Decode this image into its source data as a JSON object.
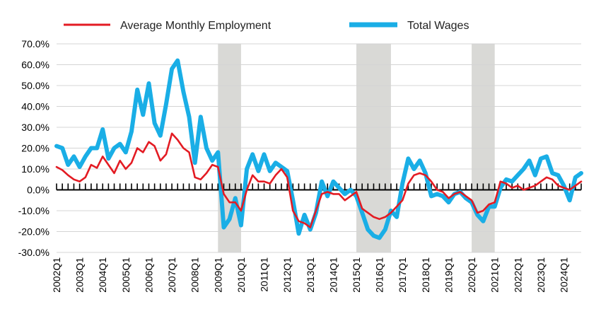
{
  "chart_data": {
    "type": "line",
    "legend": [
      "Average Monthly Employment",
      "Total Wages"
    ],
    "legend_placement": "top",
    "colors": {
      "employment": "#e31b23",
      "wages": "#1aaee6",
      "recession": "#d9d9d6",
      "zero_line": "#000000"
    },
    "ylim": [
      -0.3,
      0.7
    ],
    "y_ticks": [
      "70.0%",
      "60.0%",
      "50.0%",
      "40.0%",
      "30.0%",
      "20.0%",
      "10.0%",
      "0.0%",
      "-10.0%",
      "-20.0%",
      "-30.0%"
    ],
    "y_tick_values": [
      0.7,
      0.6,
      0.5,
      0.4,
      0.3,
      0.2,
      0.1,
      0.0,
      -0.1,
      -0.2,
      -0.3
    ],
    "x_tick_labels": [
      "2002Q1",
      "2003Q1",
      "2004Q1",
      "2005Q1",
      "2006Q1",
      "2007Q1",
      "2008Q1",
      "2009Q1",
      "2010Q1",
      "2011Q1",
      "2012Q1",
      "2013Q1",
      "2014Q1",
      "2015Q1",
      "2016Q1",
      "2017Q1",
      "2018Q1",
      "2019Q1",
      "2020Q1",
      "2021Q1",
      "2022Q1",
      "2023Q1",
      "2024Q1"
    ],
    "x_range": [
      "2002Q1",
      "2024Q4"
    ],
    "grid": "horizontal",
    "shaded_periods": [
      [
        "2009Q1",
        "2010Q1"
      ],
      [
        "2015Q1",
        "2016Q3"
      ],
      [
        "2020Q1",
        "2021Q1"
      ]
    ],
    "series": [
      {
        "name": "Average Monthly Employment",
        "values": [
          0.11,
          0.095,
          0.07,
          0.05,
          0.04,
          0.06,
          0.12,
          0.105,
          0.16,
          0.12,
          0.08,
          0.14,
          0.1,
          0.13,
          0.2,
          0.18,
          0.23,
          0.21,
          0.14,
          0.17,
          0.27,
          0.24,
          0.2,
          0.18,
          0.06,
          0.05,
          0.08,
          0.12,
          0.11,
          -0.02,
          -0.06,
          -0.06,
          -0.1,
          0.0,
          0.07,
          0.04,
          0.04,
          0.03,
          0.07,
          0.1,
          0.06,
          -0.1,
          -0.15,
          -0.16,
          -0.18,
          -0.1,
          -0.02,
          -0.01,
          -0.02,
          -0.02,
          -0.05,
          -0.03,
          -0.01,
          -0.09,
          -0.11,
          -0.13,
          -0.14,
          -0.13,
          -0.11,
          -0.08,
          -0.05,
          0.03,
          0.07,
          0.08,
          0.07,
          0.04,
          0.0,
          -0.01,
          -0.04,
          -0.02,
          -0.01,
          -0.03,
          -0.05,
          -0.11,
          -0.1,
          -0.07,
          -0.06,
          0.04,
          0.03,
          0.01,
          0.02,
          0.0,
          0.01,
          0.02,
          0.04,
          0.06,
          0.05,
          0.02,
          0.01,
          0.0,
          0.02,
          0.04
        ]
      },
      {
        "name": "Total Wages",
        "values": [
          0.21,
          0.2,
          0.12,
          0.16,
          0.11,
          0.16,
          0.2,
          0.2,
          0.29,
          0.15,
          0.2,
          0.22,
          0.18,
          0.28,
          0.48,
          0.36,
          0.51,
          0.32,
          0.26,
          0.41,
          0.58,
          0.62,
          0.47,
          0.35,
          0.13,
          0.35,
          0.2,
          0.14,
          0.18,
          -0.18,
          -0.14,
          -0.04,
          -0.17,
          0.1,
          0.17,
          0.09,
          0.17,
          0.09,
          0.13,
          0.11,
          0.09,
          -0.05,
          -0.21,
          -0.12,
          -0.19,
          -0.11,
          0.04,
          -0.03,
          0.04,
          0.01,
          -0.02,
          0.0,
          -0.03,
          -0.11,
          -0.19,
          -0.22,
          -0.23,
          -0.19,
          -0.1,
          -0.13,
          0.03,
          0.15,
          0.1,
          0.14,
          0.08,
          -0.03,
          -0.02,
          -0.03,
          -0.06,
          -0.02,
          -0.01,
          -0.04,
          -0.06,
          -0.12,
          -0.15,
          -0.08,
          -0.08,
          0.01,
          0.05,
          0.04,
          0.07,
          0.1,
          0.14,
          0.07,
          0.15,
          0.16,
          0.08,
          0.07,
          0.02,
          -0.05,
          0.06,
          0.08
        ]
      }
    ]
  }
}
